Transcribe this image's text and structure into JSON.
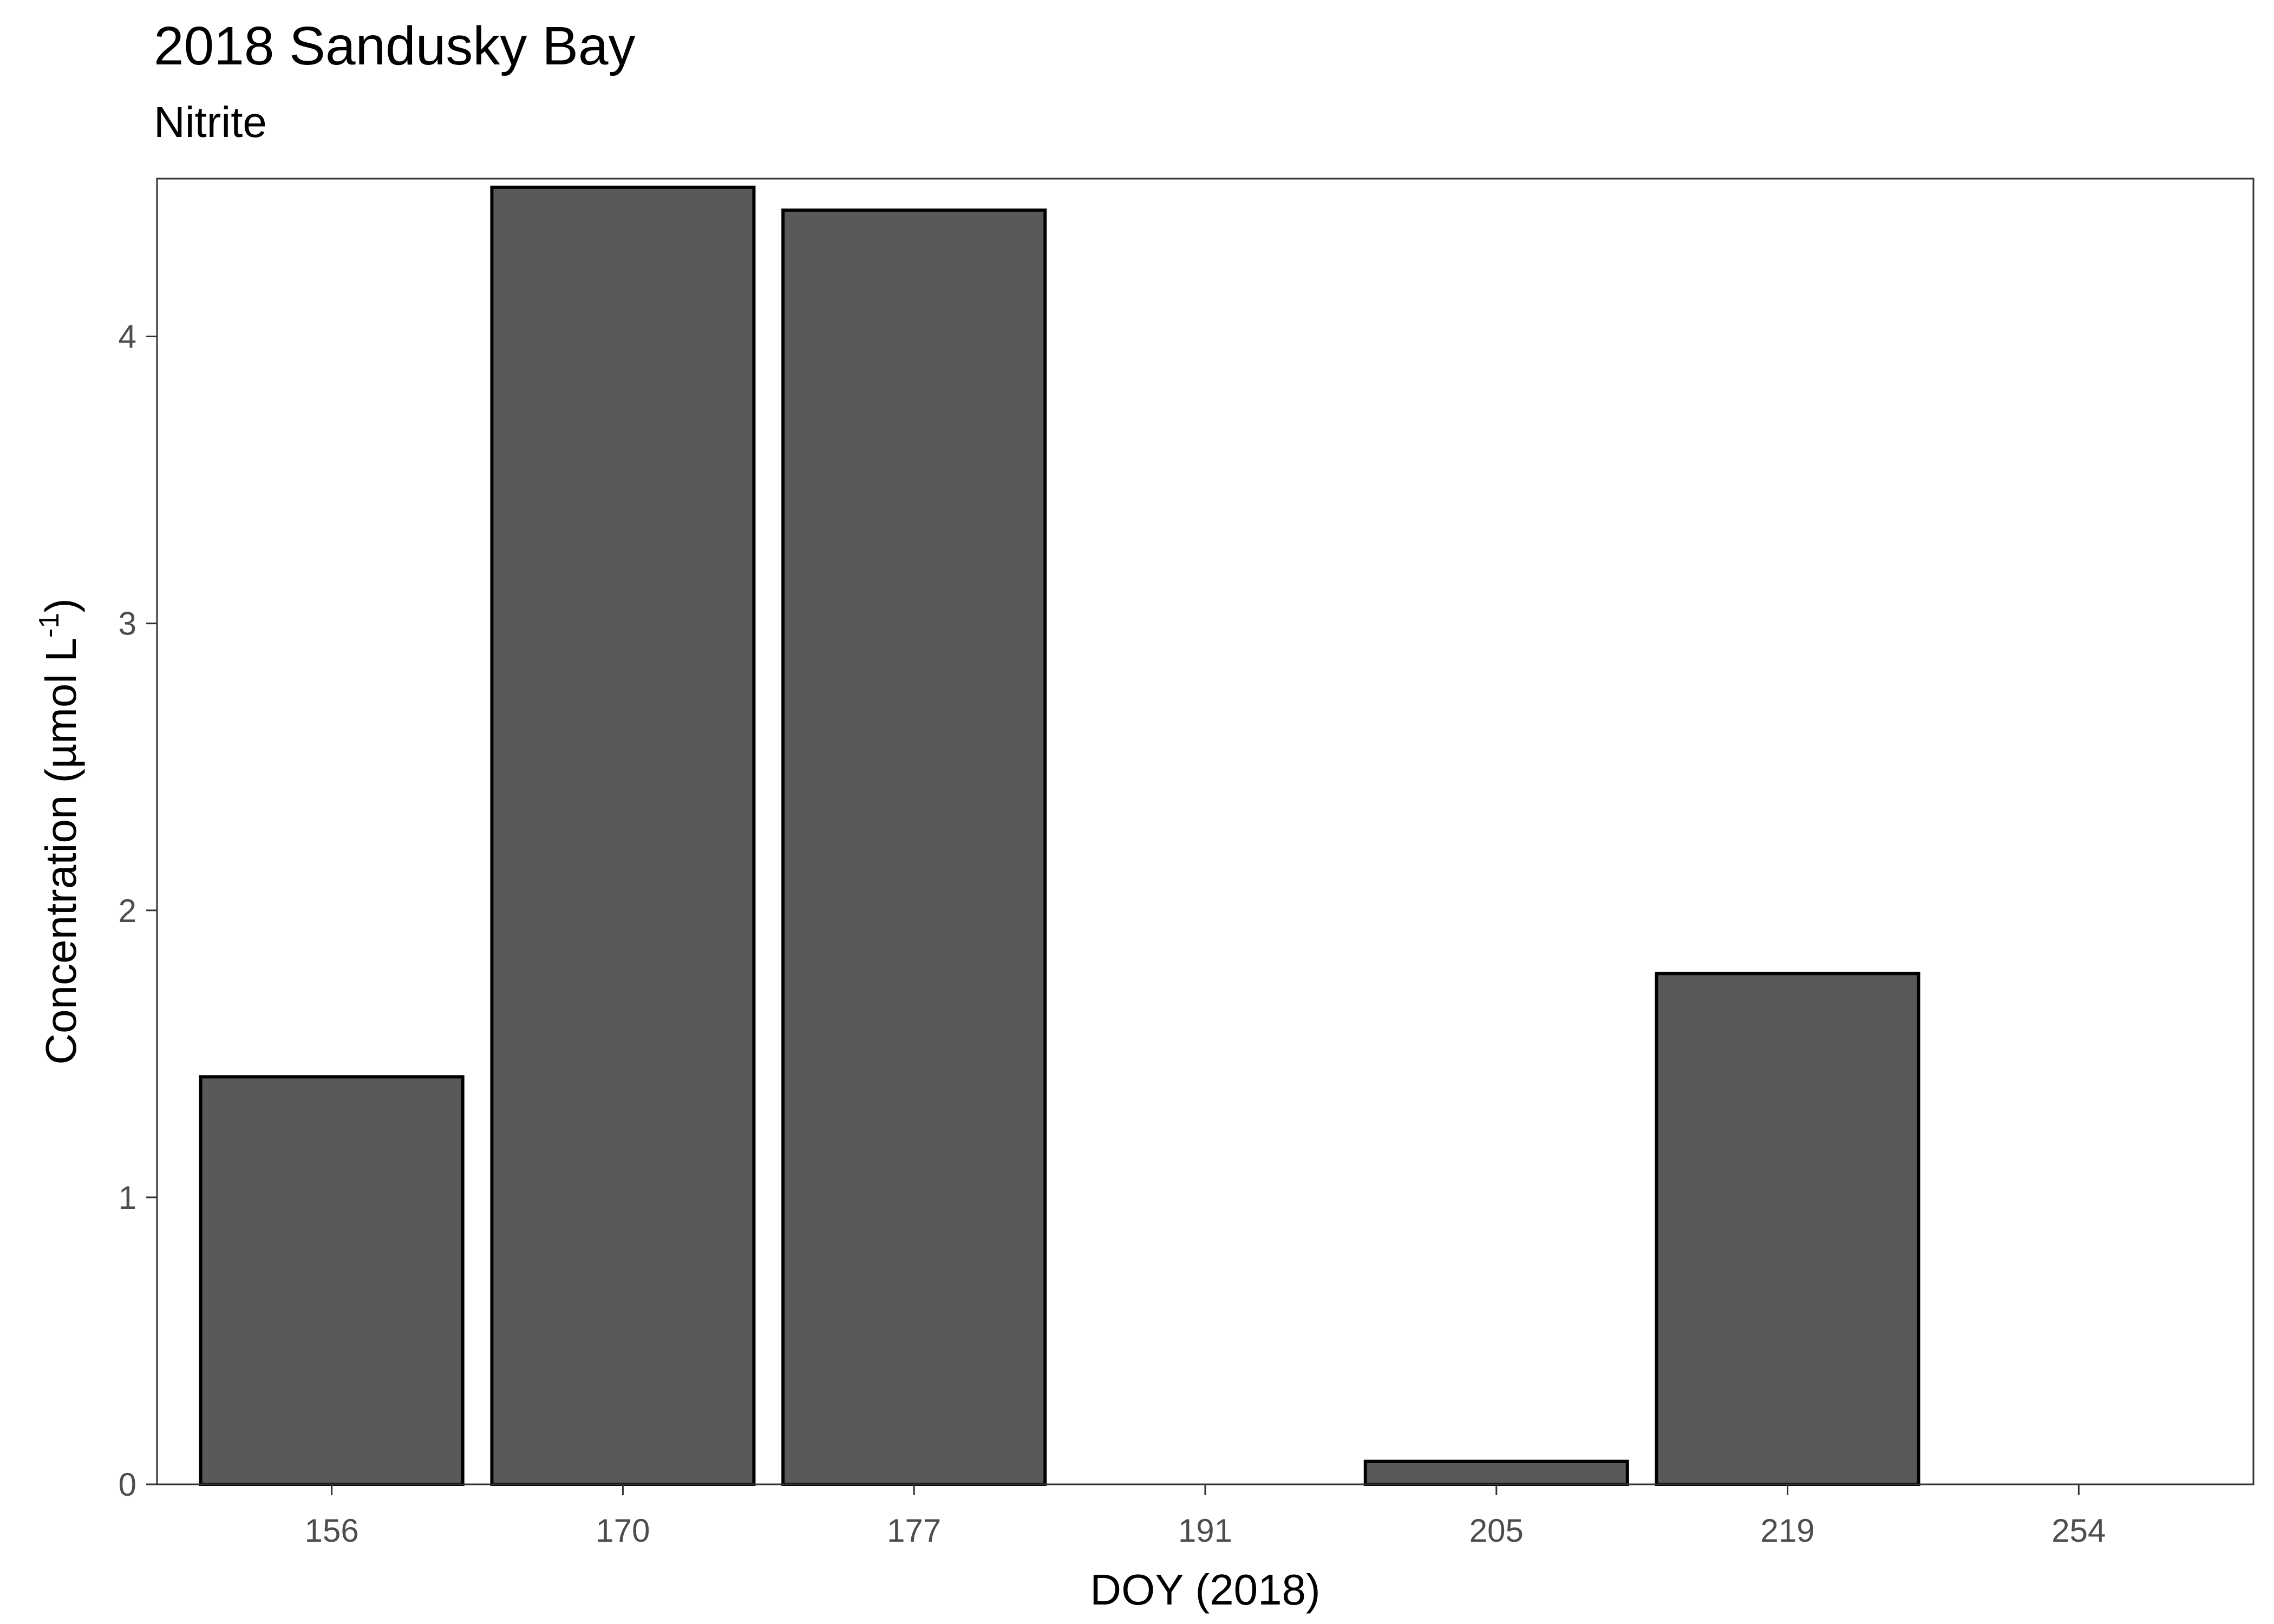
{
  "chart_data": {
    "type": "bar",
    "title": "2018 Sandusky Bay",
    "subtitle": "Nitrite",
    "xlabel": "DOY (2018)",
    "ylabel_main": "Concentration (µmol L",
    "ylabel_sup": "-1",
    "ylabel_end": ")",
    "categories": [
      "156",
      "170",
      "177",
      "191",
      "205",
      "219",
      "254"
    ],
    "values": [
      1.42,
      4.52,
      4.44,
      0,
      0.08,
      1.78,
      0
    ],
    "ylim": [
      0,
      4.55
    ],
    "yticks": [
      0,
      1,
      2,
      3,
      4
    ],
    "bar_fill": "#595959",
    "bar_stroke": "#000000",
    "grid": false
  }
}
